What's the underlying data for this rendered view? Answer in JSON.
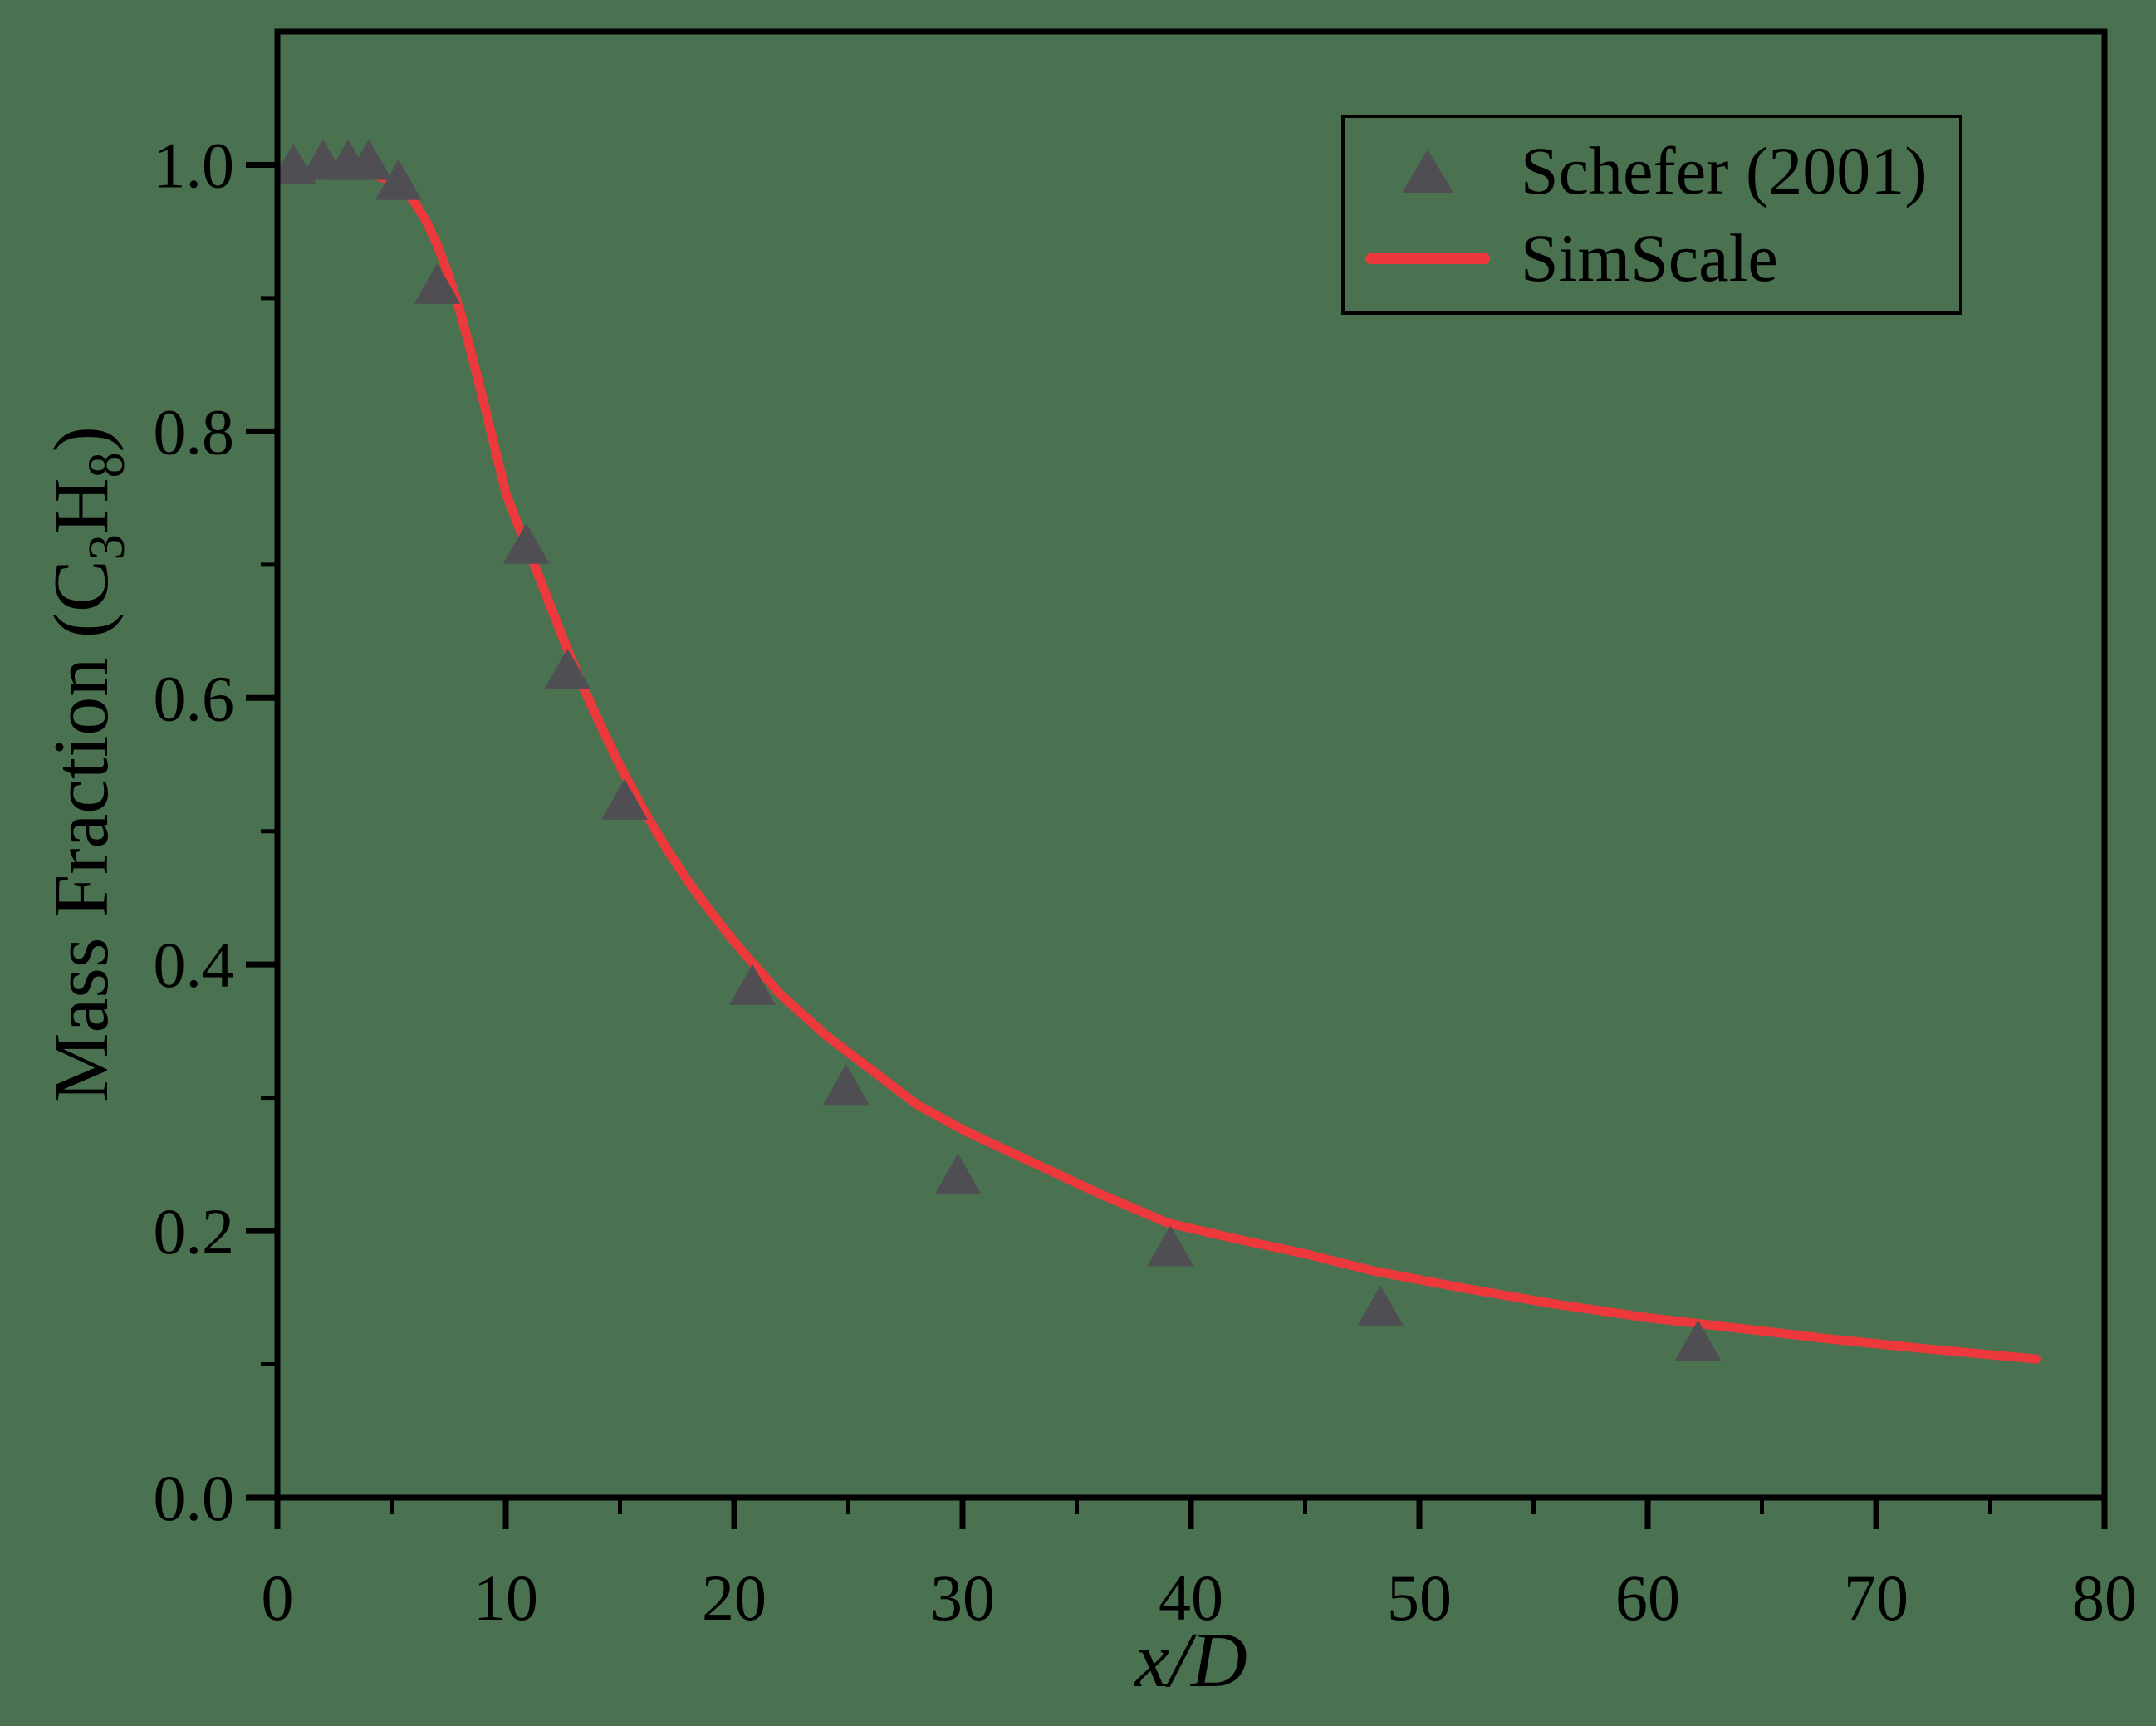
{
  "figure": {
    "background_color": "#4a7150",
    "frame_color": "#000000",
    "text_color": "#000000"
  },
  "legend": {
    "position": "upper-right",
    "entries": [
      {
        "label": "Schefer (2001)",
        "sample": "triangle-marker",
        "color": "#4f4f53"
      },
      {
        "label": "SimScale",
        "sample": "line",
        "color": "#ee393c"
      }
    ]
  },
  "ylabel_rich": {
    "p1": "Mass Fraction (C",
    "s1": "3",
    "p2": "H",
    "s2": "8",
    "p3": ")"
  },
  "chart_data": {
    "type": "line+scatter",
    "title": "",
    "xlabel": "x/D",
    "ylabel": "Mass Fraction (C3H8)",
    "xlim": [
      0,
      80
    ],
    "ylim": [
      0,
      1.1
    ],
    "grid": false,
    "legend_position": "upper right",
    "x_major_ticks": [
      0,
      10,
      20,
      30,
      40,
      50,
      60,
      70,
      80
    ],
    "x_minor_ticks": [
      5,
      15,
      25,
      35,
      45,
      55,
      65,
      75
    ],
    "y_major_ticks": [
      0,
      0.2,
      0.4,
      0.6,
      0.8,
      1.0
    ],
    "y_major_tick_labels": [
      "0.0",
      "0.2",
      "0.4",
      "0.6",
      "0.8",
      "1.0"
    ],
    "y_minor_ticks": [
      0.1,
      0.3,
      0.5,
      0.7,
      0.9
    ],
    "series": [
      {
        "name": "Schefer (2001)",
        "type": "scatter",
        "marker": "triangle-up",
        "color": "#4f4f53",
        "points": [
          [
            0.7,
            1.0
          ],
          [
            2.0,
            1.003
          ],
          [
            3.1,
            1.003
          ],
          [
            4.0,
            1.003
          ],
          [
            5.3,
            0.988
          ],
          [
            7.0,
            0.91
          ],
          [
            10.9,
            0.715
          ],
          [
            12.7,
            0.621
          ],
          [
            15.2,
            0.523
          ],
          [
            20.8,
            0.384
          ],
          [
            24.9,
            0.309
          ],
          [
            29.8,
            0.242
          ],
          [
            39.1,
            0.188
          ],
          [
            48.3,
            0.143
          ],
          [
            62.2,
            0.117
          ]
        ]
      },
      {
        "name": "SimScale",
        "type": "line",
        "color": "#ee393c",
        "stroke_width": 11,
        "points": [
          [
            0,
            0.995
          ],
          [
            1,
            0.995
          ],
          [
            2,
            0.995
          ],
          [
            3,
            0.995
          ],
          [
            4,
            0.993
          ],
          [
            4.5,
            0.991
          ],
          [
            5,
            0.988
          ],
          [
            5.5,
            0.982
          ],
          [
            6,
            0.972
          ],
          [
            6.5,
            0.958
          ],
          [
            7,
            0.94
          ],
          [
            7.5,
            0.917
          ],
          [
            8,
            0.89
          ],
          [
            8.5,
            0.858
          ],
          [
            9,
            0.824
          ],
          [
            9.5,
            0.789
          ],
          [
            10,
            0.754
          ],
          [
            10.5,
            0.731
          ],
          [
            11,
            0.71
          ],
          [
            11.5,
            0.689
          ],
          [
            12,
            0.667
          ],
          [
            12.5,
            0.645
          ],
          [
            13,
            0.624
          ],
          [
            13.5,
            0.604
          ],
          [
            14,
            0.585
          ],
          [
            15,
            0.549
          ],
          [
            16,
            0.517
          ],
          [
            17,
            0.488
          ],
          [
            18,
            0.462
          ],
          [
            19,
            0.439
          ],
          [
            20,
            0.417
          ],
          [
            22,
            0.378
          ],
          [
            24,
            0.347
          ],
          [
            26,
            0.321
          ],
          [
            28,
            0.295
          ],
          [
            30,
            0.276
          ],
          [
            33,
            0.252
          ],
          [
            36,
            0.228
          ],
          [
            39,
            0.206
          ],
          [
            42,
            0.194
          ],
          [
            45,
            0.183
          ],
          [
            48,
            0.17
          ],
          [
            52,
            0.157
          ],
          [
            56,
            0.145
          ],
          [
            60,
            0.135
          ],
          [
            64,
            0.127
          ],
          [
            68,
            0.119
          ],
          [
            72,
            0.112
          ],
          [
            77,
            0.104
          ]
        ]
      }
    ]
  }
}
